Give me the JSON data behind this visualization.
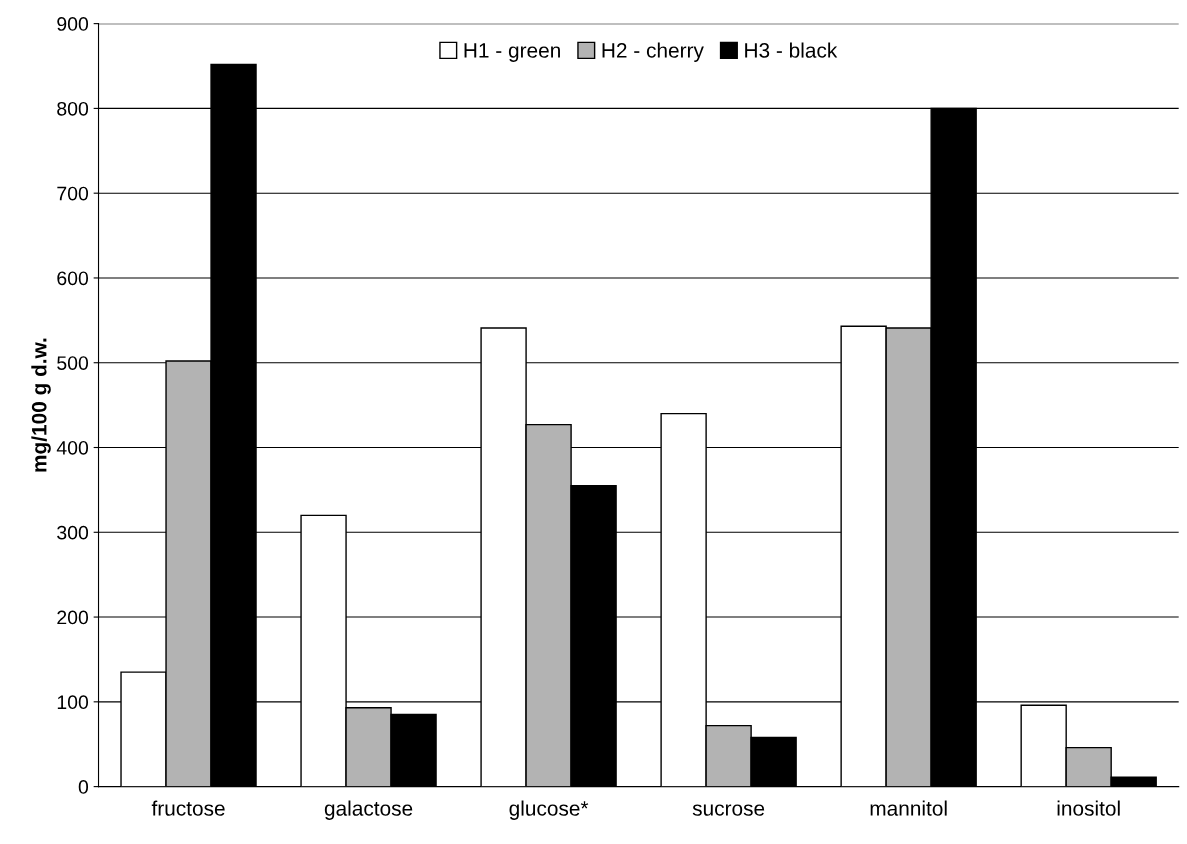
{
  "chart_data": {
    "type": "bar",
    "ylabel": "mg/100 g d.w.",
    "categories": [
      "fructose",
      "galactose",
      "glucose*",
      "sucrose",
      "mannitol",
      "inositol"
    ],
    "series": [
      {
        "name": "H1 - green",
        "color": "#ffffff",
        "values": [
          135,
          320,
          541,
          440,
          543,
          96
        ]
      },
      {
        "name": "H2 - cherry",
        "color": "#b3b3b3",
        "values": [
          502,
          93,
          427,
          72,
          541,
          46
        ]
      },
      {
        "name": "H3 - black",
        "color": "#000000",
        "values": [
          852,
          85,
          355,
          58,
          800,
          11
        ]
      }
    ],
    "ylim": [
      0,
      900
    ],
    "yticks": [
      0,
      100,
      200,
      300,
      400,
      500,
      600,
      700,
      800,
      900
    ],
    "grid": "y",
    "legend": "top"
  }
}
